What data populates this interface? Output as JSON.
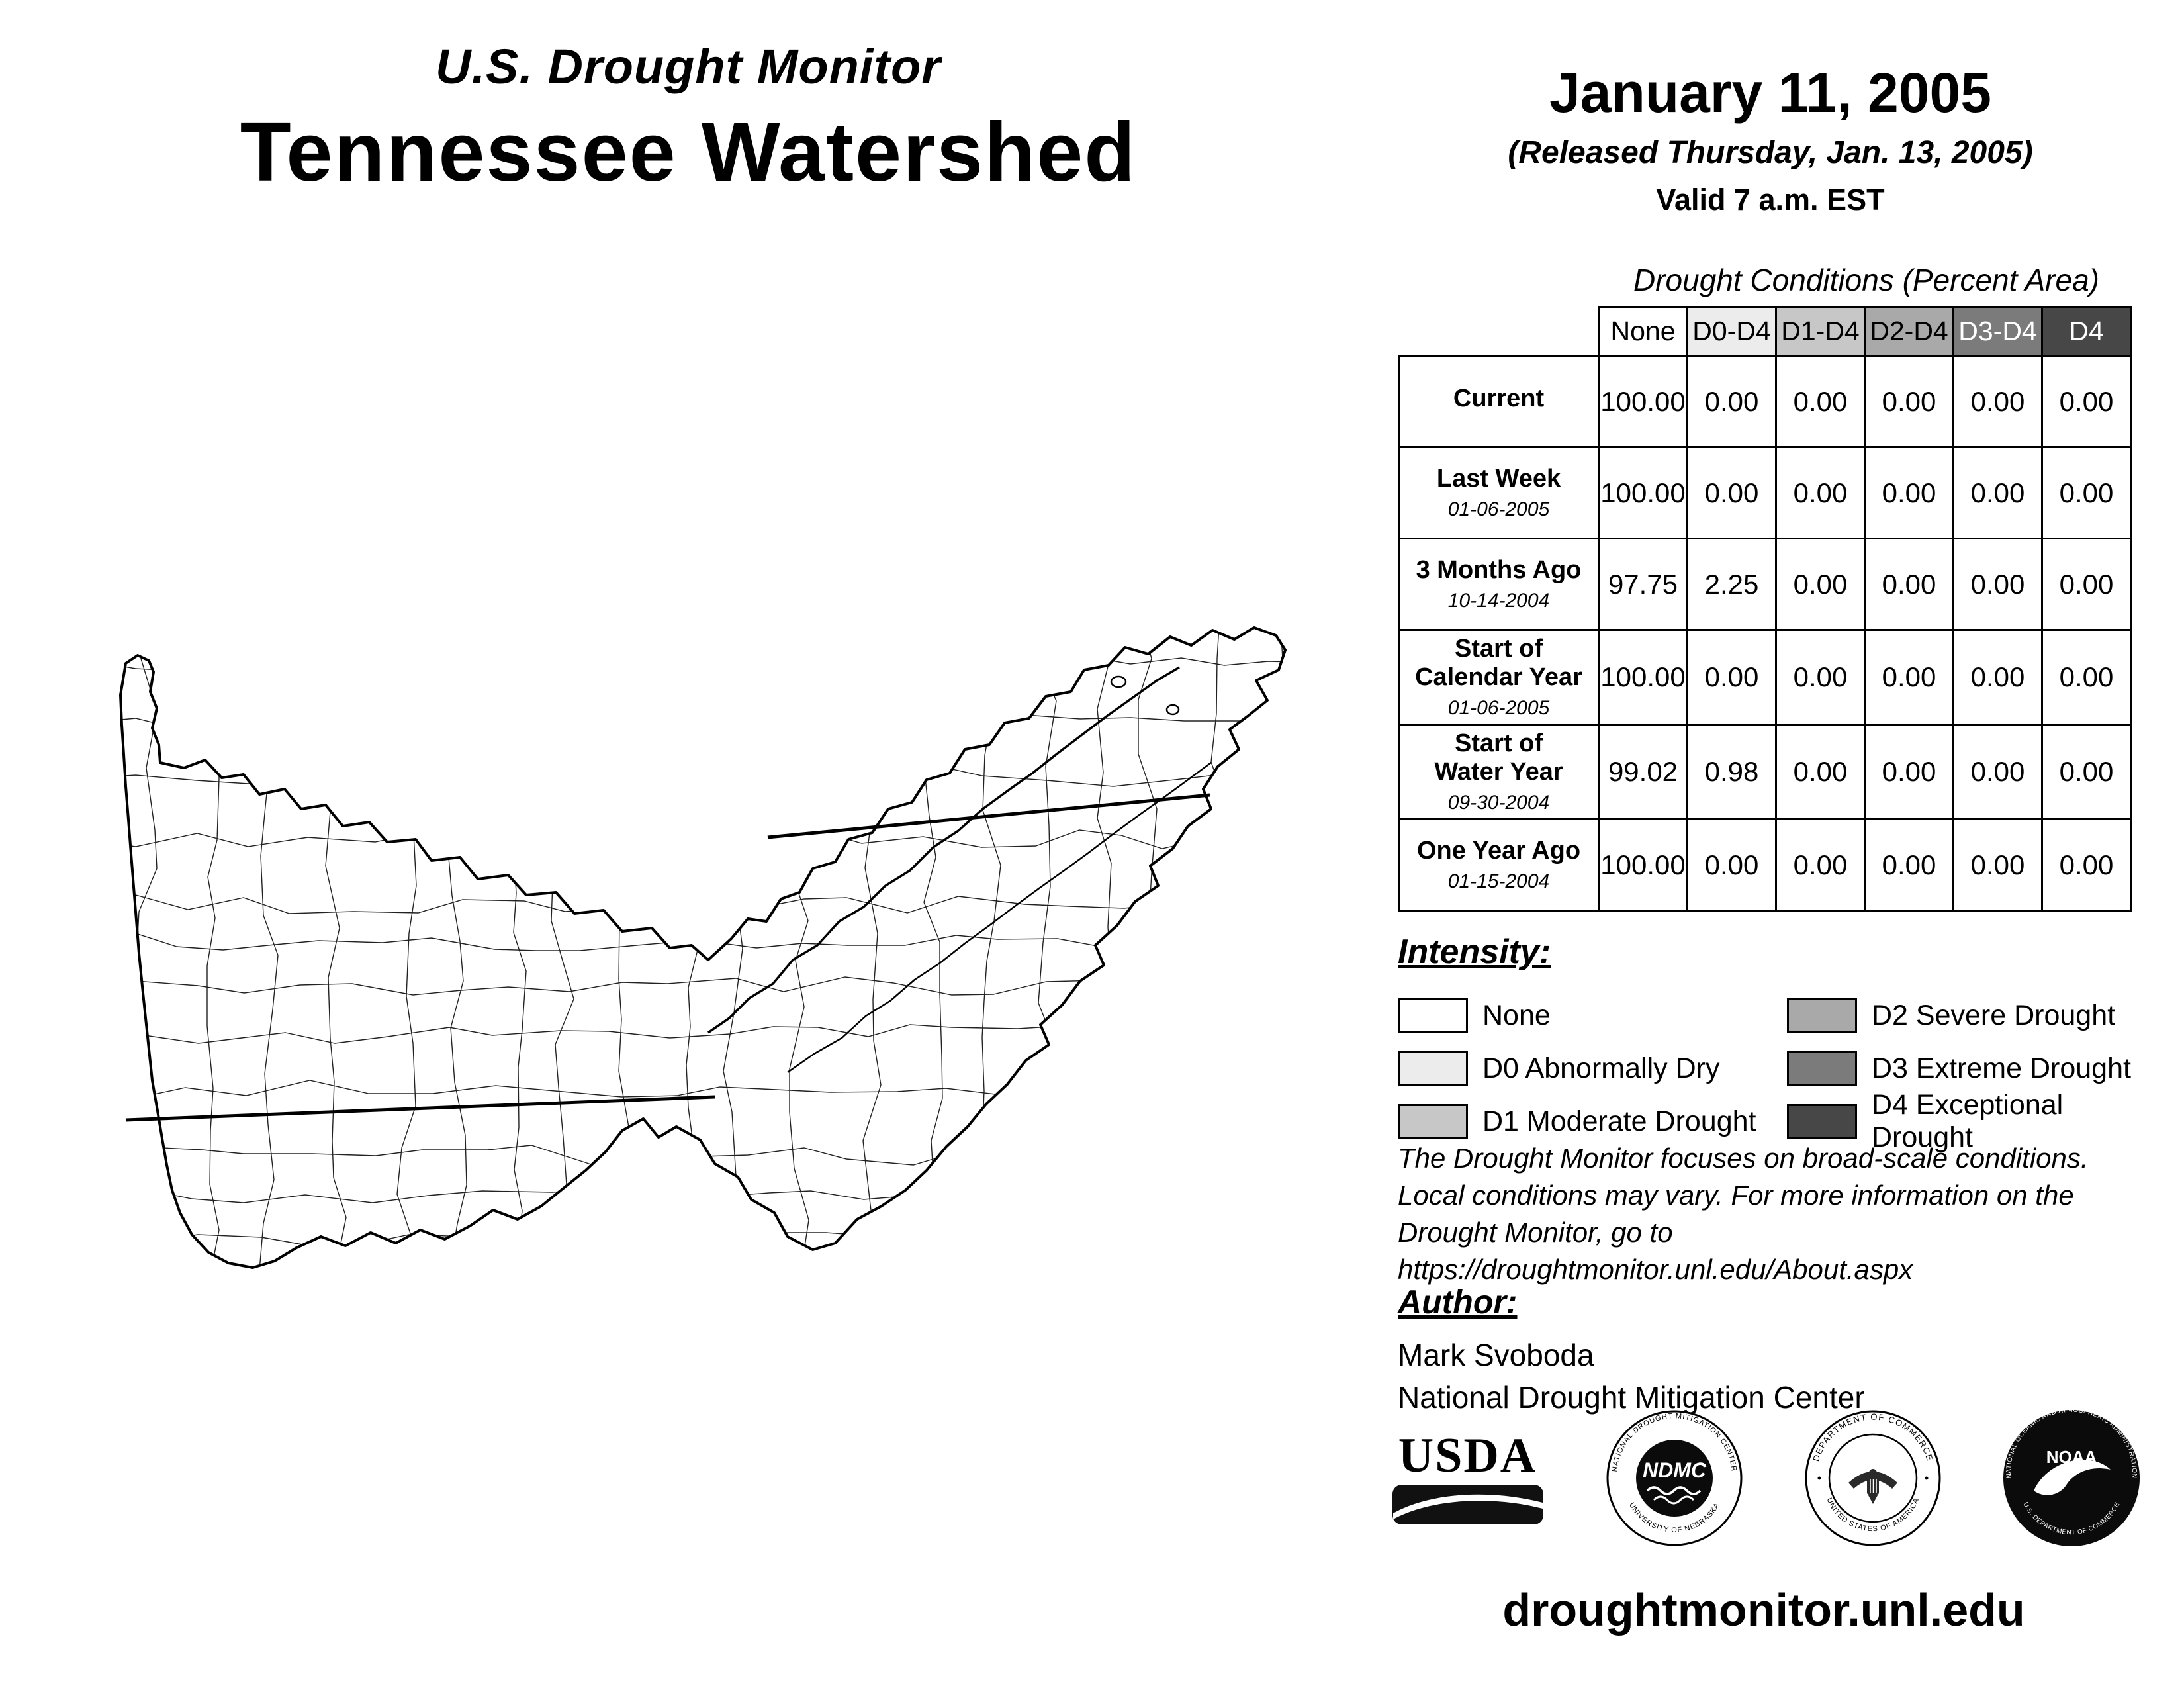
{
  "header": {
    "program": "U.S. Drought Monitor",
    "region": "Tennessee Watershed",
    "date": "January 11, 2005",
    "released": "(Released Thursday, Jan. 13, 2005)",
    "valid": "Valid 7 a.m. EST"
  },
  "table": {
    "title": "Drought Conditions (Percent Area)",
    "columns": [
      "None",
      "D0-D4",
      "D1-D4",
      "D2-D4",
      "D3-D4",
      "D4"
    ],
    "rows": [
      {
        "label": "Current",
        "date": "",
        "values": [
          "100.00",
          "0.00",
          "0.00",
          "0.00",
          "0.00",
          "0.00"
        ]
      },
      {
        "label": "Last Week",
        "date": "01-06-2005",
        "values": [
          "100.00",
          "0.00",
          "0.00",
          "0.00",
          "0.00",
          "0.00"
        ]
      },
      {
        "label": "3 Months Ago",
        "date": "10-14-2004",
        "values": [
          "97.75",
          "2.25",
          "0.00",
          "0.00",
          "0.00",
          "0.00"
        ]
      },
      {
        "label": "Start of\nCalendar Year",
        "date": "01-06-2005",
        "values": [
          "100.00",
          "0.00",
          "0.00",
          "0.00",
          "0.00",
          "0.00"
        ]
      },
      {
        "label": "Start of\nWater Year",
        "date": "09-30-2004",
        "values": [
          "99.02",
          "0.98",
          "0.00",
          "0.00",
          "0.00",
          "0.00"
        ]
      },
      {
        "label": "One Year Ago",
        "date": "01-15-2004",
        "values": [
          "100.00",
          "0.00",
          "0.00",
          "0.00",
          "0.00",
          "0.00"
        ]
      }
    ]
  },
  "legend": {
    "title": "Intensity:",
    "items": [
      {
        "label": "None",
        "color": "#ffffff"
      },
      {
        "label": "D0 Abnormally Dry",
        "color": "#ececec"
      },
      {
        "label": "D1 Moderate Drought",
        "color": "#c7c7c7"
      },
      {
        "label": "D2 Severe Drought",
        "color": "#a9a9a9"
      },
      {
        "label": "D3 Extreme Drought",
        "color": "#7b7b7b"
      },
      {
        "label": "D4 Exceptional Drought",
        "color": "#474747"
      }
    ]
  },
  "disclaimer": {
    "lines": [
      "The Drought Monitor focuses on broad-scale conditions.",
      "Local conditions may vary. For more information on the",
      "Drought Monitor, go to https://droughtmonitor.unl.edu/About.aspx"
    ]
  },
  "author": {
    "title": "Author:",
    "name": "Mark Svoboda",
    "org": "National Drought Mitigation Center"
  },
  "logos": {
    "usda": {
      "name": "USDA"
    },
    "ndmc": {
      "center": "NDMC",
      "ring_top": "NATIONAL DROUGHT MITIGATION CENTER",
      "ring_bottom": "UNIVERSITY OF NEBRASKA"
    },
    "doc": {
      "ring_top": "DEPARTMENT OF COMMERCE",
      "ring_bottom": "UNITED STATES OF AMERICA"
    },
    "noaa": {
      "center": "NOAA",
      "ring_top": "NATIONAL OCEANIC AND ATMOSPHERIC ADMINISTRATION",
      "ring_bottom": "U.S. DEPARTMENT OF COMMERCE"
    }
  },
  "footer": {
    "url": "droughtmonitor.unl.edu"
  }
}
